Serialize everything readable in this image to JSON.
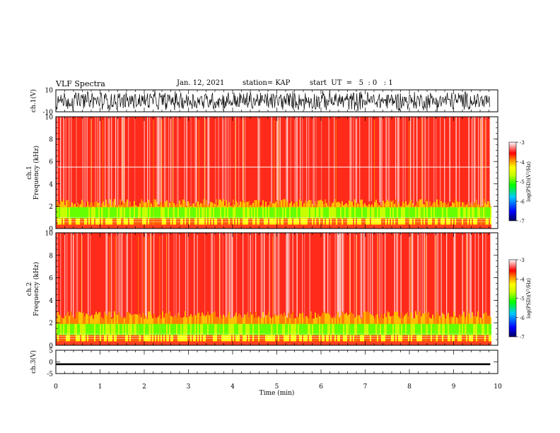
{
  "header": {
    "title": "VLF Spectra",
    "date": "Jan. 12, 2021",
    "station": "station= KAP",
    "start": "start  UT  =   5  : 0   : 1"
  },
  "chart_data": [
    {
      "type": "line",
      "panel": "ch1-waveform",
      "ylabel": "ch.1(V)",
      "ylim": [
        -10,
        10
      ],
      "yticks": [
        "10",
        "-10"
      ],
      "xlim": [
        0,
        10
      ],
      "x_end": 9.83,
      "series": [
        {
          "values_range": [
            -10,
            10
          ],
          "color": "#000000"
        }
      ]
    },
    {
      "type": "heatmap",
      "panel": "ch1-spectrogram",
      "ylabel": "ch.1\nFrequency (kHz)",
      "ylim": [
        0,
        10
      ],
      "yticks": [
        "0",
        "2",
        "4",
        "6",
        "8",
        "10"
      ],
      "xlim": [
        0,
        10
      ],
      "colorbar": {
        "label": "log(PSD)(V²/Hz)",
        "ticks": [
          "-3",
          "-4",
          "-5",
          "-6",
          "-7"
        ],
        "range": [
          -7,
          -3
        ],
        "colors": [
          "#000080",
          "#0000ff",
          "#00c0ff",
          "#00ff00",
          "#c0ff00",
          "#ffff00",
          "#ff8000",
          "#ff0000",
          "#ffffff"
        ]
      }
    },
    {
      "type": "heatmap",
      "panel": "ch2-spectrogram",
      "ylabel": "ch.2\nFrequency (kHz)",
      "ylim": [
        0,
        10
      ],
      "yticks": [
        "0",
        "2",
        "4",
        "6",
        "8",
        "10"
      ],
      "xlim": [
        0,
        10
      ],
      "colorbar": {
        "label": "log(PSD)(V²/Hz)",
        "ticks": [
          "-3",
          "-4",
          "-5",
          "-6",
          "-7"
        ],
        "range": [
          -7,
          -3
        ]
      }
    },
    {
      "type": "line",
      "panel": "ch3-waveform",
      "ylabel": "ch.3(V)",
      "ylim": [
        -5,
        5
      ],
      "yticks": [
        "5",
        "0",
        "-5"
      ],
      "xlim": [
        0,
        10
      ],
      "series": [
        {
          "values_range": [
            -1.4,
            -0.6
          ],
          "color": "#000000"
        }
      ]
    }
  ],
  "xaxis": {
    "label": "Time (min)",
    "ticks": [
      "0",
      "1",
      "2",
      "3",
      "4",
      "5",
      "6",
      "7",
      "8",
      "9",
      "10"
    ]
  }
}
